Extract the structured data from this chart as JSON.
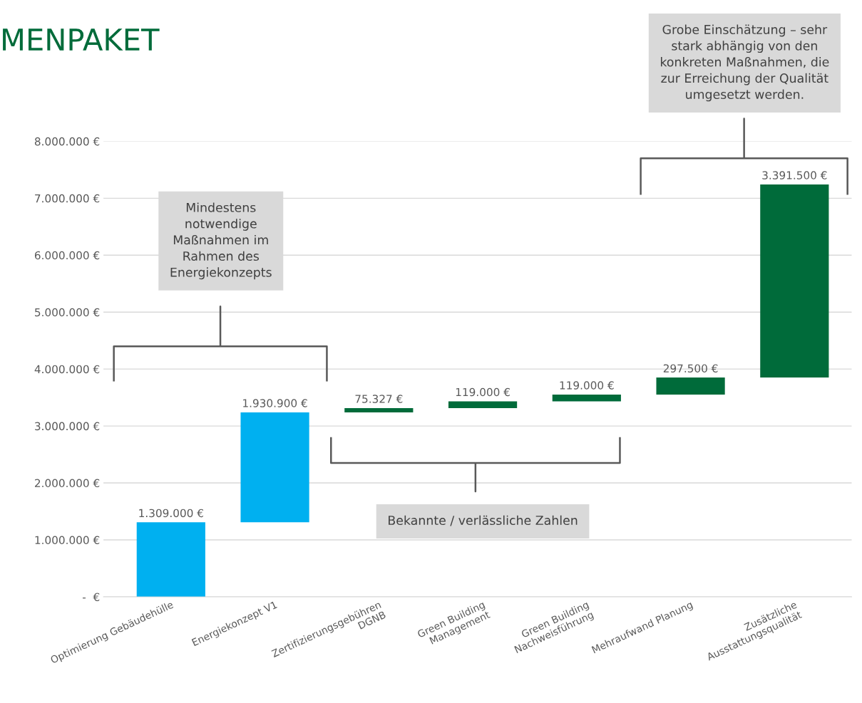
{
  "chart_data": {
    "type": "bar",
    "title": "MENPAKET",
    "categories": [
      "Optimierung Gebäudehülle",
      "Energiekonzept V1",
      "Zertifizierungsgebühren\nDGNB",
      "Green Building\nManagement",
      "Green Building\nNachweisführung",
      "Mehraufwand Planung",
      "Zusätzliche\nAusstattungsqualität"
    ],
    "values": [
      1309000,
      1930900,
      75327,
      119000,
      119000,
      297500,
      3391500
    ],
    "base": [
      0,
      1309000,
      3239900,
      3315227,
      3434227,
      3553227,
      3850727
    ],
    "colors": [
      "#00b0f0",
      "#00b0f0",
      "#006b3a",
      "#006b3a",
      "#006b3a",
      "#006b3a",
      "#006b3a"
    ],
    "value_labels": [
      "1.309.000 €",
      "1.930.900 €",
      "75.327 €",
      "119.000 €",
      "119.000 €",
      "297.500 €",
      "3.391.500 €"
    ],
    "ylim": [
      0,
      8000000
    ],
    "yticks": [
      {
        "value": 0,
        "label": "-  €"
      },
      {
        "value": 1000000,
        "label": "1.000.000 €"
      },
      {
        "value": 2000000,
        "label": "2.000.000 €"
      },
      {
        "value": 3000000,
        "label": "3.000.000 €"
      },
      {
        "value": 4000000,
        "label": "4.000.000 €"
      },
      {
        "value": 5000000,
        "label": "5.000.000 €"
      },
      {
        "value": 6000000,
        "label": "6.000.000 €"
      },
      {
        "value": 7000000,
        "label": "7.000.000 €"
      },
      {
        "value": 8000000,
        "label": "8.000.000 €"
      }
    ],
    "grid": "y",
    "annotations": [
      "Mindestens\nnotwendige\nMaßnahmen im\nRahmen des\nEnergiekonzepts",
      "Bekannte / verlässliche Zahlen",
      "Grobe Einschätzung – sehr\nstark abhängig von den\nkonkreten Maßnahmen, die\nzur Erreichung der Qualität\numgesetzt werden."
    ]
  }
}
